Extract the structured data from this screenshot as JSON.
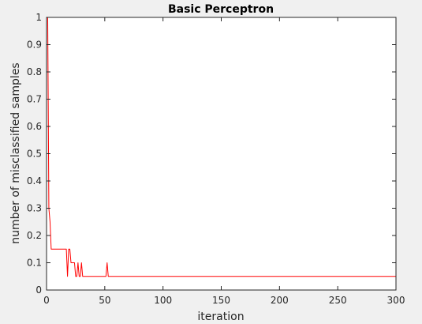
{
  "chart_data": {
    "type": "line",
    "title": "Basic Perceptron",
    "xlabel": "iteration",
    "ylabel": "number of misclassified samples",
    "xlim": [
      0,
      300
    ],
    "ylim": [
      0,
      1
    ],
    "xticks": [
      0,
      50,
      100,
      150,
      200,
      250,
      300
    ],
    "xtick_labels": [
      "0",
      "50",
      "100",
      "150",
      "200",
      "250",
      "300"
    ],
    "yticks": [
      0,
      0.1,
      0.2,
      0.3,
      0.4,
      0.5,
      0.6,
      0.7,
      0.8,
      0.9,
      1
    ],
    "ytick_labels": [
      "0",
      "0.1",
      "0.2",
      "0.3",
      "0.4",
      "0.5",
      "0.6",
      "0.7",
      "0.8",
      "0.9",
      "1"
    ],
    "grid": false,
    "series": [
      {
        "color": "#ff0000",
        "x": [
          1,
          2,
          3,
          4,
          5,
          6,
          7,
          8,
          9,
          10,
          11,
          12,
          13,
          14,
          15,
          16,
          17,
          18,
          19,
          20,
          21,
          22,
          23,
          24,
          25,
          26,
          27,
          28,
          29,
          30,
          31,
          32,
          33,
          34,
          35,
          36,
          37,
          38,
          39,
          40,
          41,
          42,
          43,
          44,
          45,
          46,
          47,
          48,
          49,
          50,
          51,
          52,
          53,
          54,
          55,
          300
        ],
        "y": [
          1,
          0.3,
          0.25,
          0.15,
          0.15,
          0.15,
          0.15,
          0.15,
          0.15,
          0.15,
          0.15,
          0.15,
          0.15,
          0.15,
          0.15,
          0.15,
          0.15,
          0.05,
          0.15,
          0.15,
          0.1,
          0.1,
          0.1,
          0.1,
          0.05,
          0.05,
          0.1,
          0.05,
          0.05,
          0.1,
          0.05,
          0.05,
          0.05,
          0.05,
          0.05,
          0.05,
          0.05,
          0.05,
          0.05,
          0.05,
          0.05,
          0.05,
          0.05,
          0.05,
          0.05,
          0.05,
          0.05,
          0.05,
          0.05,
          0.05,
          0.05,
          0.1,
          0.05,
          0.05,
          0.05,
          0.05
        ]
      }
    ]
  }
}
